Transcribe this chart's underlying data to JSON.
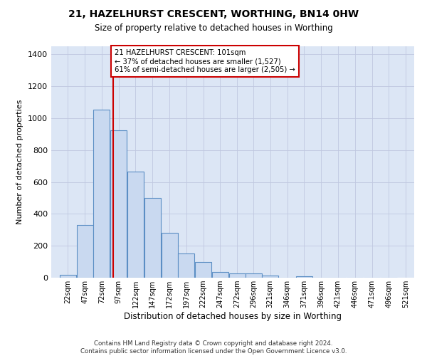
{
  "title": "21, HAZELHURST CRESCENT, WORTHING, BN14 0HW",
  "subtitle": "Size of property relative to detached houses in Worthing",
  "xlabel": "Distribution of detached houses by size in Worthing",
  "ylabel": "Number of detached properties",
  "bin_labels": [
    "22sqm",
    "47sqm",
    "72sqm",
    "97sqm",
    "122sqm",
    "147sqm",
    "172sqm",
    "197sqm",
    "222sqm",
    "247sqm",
    "272sqm",
    "296sqm",
    "321sqm",
    "346sqm",
    "371sqm",
    "396sqm",
    "421sqm",
    "446sqm",
    "471sqm",
    "496sqm",
    "521sqm"
  ],
  "bin_edges": [
    22,
    47,
    72,
    97,
    122,
    147,
    172,
    197,
    222,
    247,
    272,
    296,
    321,
    346,
    371,
    396,
    421,
    446,
    471,
    496,
    521
  ],
  "bin_width": 25,
  "bar_heights": [
    20,
    330,
    1055,
    925,
    665,
    500,
    280,
    150,
    100,
    35,
    25,
    25,
    15,
    0,
    10,
    0,
    0,
    0,
    0,
    0
  ],
  "bar_color": "#c9d9f0",
  "bar_edge_color": "#5b8ec4",
  "grid_color": "#c0c8e0",
  "background_color": "#dce6f5",
  "red_line_x": 101,
  "annotation_text": "21 HAZELHURST CRESCENT: 101sqm\n← 37% of detached houses are smaller (1,527)\n61% of semi-detached houses are larger (2,505) →",
  "annotation_box_color": "#ffffff",
  "annotation_box_edge": "#cc0000",
  "ylim": [
    0,
    1450
  ],
  "yticks": [
    0,
    200,
    400,
    600,
    800,
    1000,
    1200,
    1400
  ],
  "xlim_left": 10,
  "xlim_right": 546,
  "footnote": "Contains HM Land Registry data © Crown copyright and database right 2024.\nContains public sector information licensed under the Open Government Licence v3.0."
}
